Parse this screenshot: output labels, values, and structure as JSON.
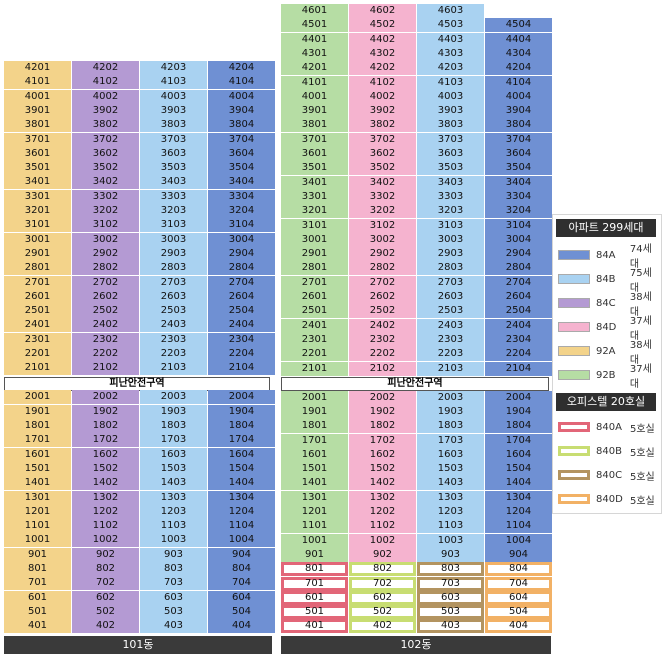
{
  "colors": {
    "84A": "#6f90d3",
    "84B": "#a9d2f1",
    "84C": "#b49ad3",
    "84D": "#f5b3cf",
    "92A": "#f3d38a",
    "92B": "#b6dda4",
    "840A": "#e26678",
    "840B": "#c8dd72",
    "840C": "#b39460",
    "840D": "#f2b165"
  },
  "buildings": [
    {
      "id": "101",
      "label": "101동",
      "types": [
        "92A",
        "84C",
        "84B",
        "84A"
      ],
      "top_floor": 42,
      "refuge_label": "피난안전구역",
      "refuge_after_floor": 21,
      "cols": 4
    },
    {
      "id": "102",
      "label": "102동",
      "types": [
        "92B",
        "84D",
        "84B",
        "84A"
      ],
      "top_floor": 46,
      "refuge_label": "피난안전구역",
      "refuge_after_floor": 21,
      "cols": 4
    }
  ],
  "legend": {
    "apt_title": "아파트 299세대",
    "apt_items": [
      {
        "code": "84A",
        "count": "74세대"
      },
      {
        "code": "84B",
        "count": "75세대"
      },
      {
        "code": "84C",
        "count": "38세대"
      },
      {
        "code": "84D",
        "count": "37세대"
      },
      {
        "code": "92A",
        "count": "38세대"
      },
      {
        "code": "92B",
        "count": "37세대"
      }
    ],
    "office_title": "오피스텔 20호실",
    "office_items": [
      {
        "code": "840A",
        "count": "5호실"
      },
      {
        "code": "840B",
        "count": "5호실"
      },
      {
        "code": "840C",
        "count": "5호실"
      },
      {
        "code": "840D",
        "count": "5호실"
      }
    ]
  }
}
